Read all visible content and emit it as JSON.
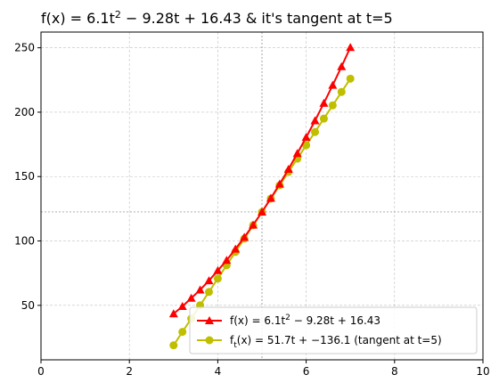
{
  "chart_data": {
    "type": "line",
    "title": "f(x) = 6.1t² − 9.28t + 16.43 & it's tangent at t=5",
    "title_parts": {
      "prefix": "f(x) = 6.1t",
      "superscript": "2",
      "suffix": " − 9.28t + 16.43 & it's tangent at t=5"
    },
    "xlabel": "",
    "ylabel": "",
    "xlim": [
      0,
      10
    ],
    "ylim": [
      7.7,
      262.2
    ],
    "xticks": [
      0,
      2,
      4,
      6,
      8,
      10
    ],
    "yticks": [
      50,
      100,
      150,
      200,
      250
    ],
    "grid": true,
    "legend_position": "lower-right",
    "reference_lines": {
      "x": 5,
      "y": 122.53
    },
    "series": [
      {
        "name": "f(x) = 6.1t² − 9.28t + 16.43",
        "name_parts": {
          "prefix": "f(x) = 6.1t",
          "superscript": "2",
          "suffix": " − 9.28t + 16.43"
        },
        "color": "#ff0000",
        "marker": "triangle",
        "x": [
          3.0,
          3.2,
          3.4,
          3.6,
          3.8,
          4.0,
          4.2,
          4.4,
          4.6,
          4.8,
          5.0,
          5.2,
          5.4,
          5.6,
          5.8,
          6.0,
          6.2,
          6.4,
          6.6,
          6.8,
          7.0
        ],
        "y": [
          43.5,
          49.2,
          55.6,
          62.0,
          69.2,
          77.0,
          85.0,
          93.7,
          102.9,
          112.4,
          122.5,
          133.2,
          144.2,
          155.7,
          168.0,
          180.5,
          193.4,
          207.0,
          221.0,
          235.4,
          250.3
        ]
      },
      {
        "name": "f_t(x) = 51.7t + −136.1 (tangent at t=5)",
        "name_parts": {
          "prefix": "f",
          "subscript": "t",
          "suffix": "(x) = 51.7t + −136.1 (tangent at t=5)"
        },
        "color": "#bfbf00",
        "marker": "circle",
        "x": [
          3.0,
          3.2,
          3.4,
          3.6,
          3.8,
          4.0,
          4.2,
          4.4,
          4.6,
          4.8,
          5.0,
          5.2,
          5.4,
          5.6,
          5.8,
          6.0,
          6.2,
          6.4,
          6.6,
          6.8,
          7.0
        ],
        "y": [
          19.0,
          29.4,
          39.7,
          50.1,
          60.4,
          70.8,
          81.1,
          91.5,
          101.8,
          112.2,
          122.5,
          132.9,
          143.2,
          153.6,
          163.9,
          174.3,
          184.6,
          195.0,
          205.3,
          215.7,
          226.0
        ]
      }
    ]
  }
}
